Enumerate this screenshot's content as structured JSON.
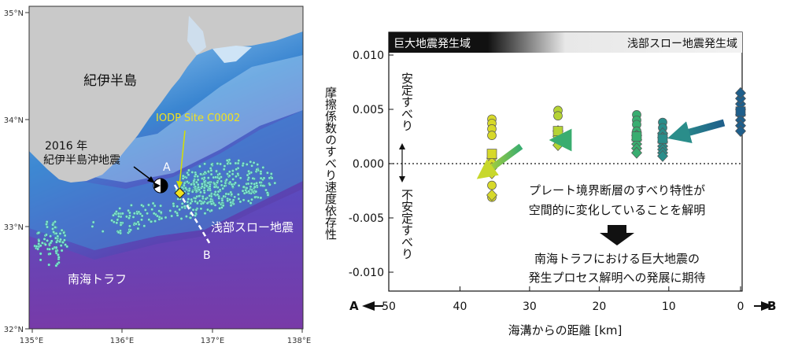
{
  "map": {
    "lat_labels": [
      "35°N",
      "34°N",
      "33°N",
      "32°N"
    ],
    "lon_labels": [
      "135°E",
      "136°E",
      "137°E",
      "138°E"
    ],
    "kii_peninsula": "紀伊半島",
    "nankai_trough": "南海トラフ",
    "shallow_slow_eq": "浅部スロー地震",
    "site_label": "IODP Site C0002",
    "eq_2016_line1": "2016 年",
    "eq_2016_line2": "紀伊半島沖地震",
    "point_a": "A",
    "point_b": "B",
    "colors": {
      "land": "#c8c8c8",
      "shelf": "#dcebf7",
      "slope": "#3d8fd6",
      "deep": "#4a3aa8",
      "dots": "#7fe3d4",
      "site": "#f2e21e"
    }
  },
  "chart_data": {
    "type": "scatter",
    "xlabel": "海溝からの距離 [km]",
    "ylabel": "摩擦係数のすべり速度依存性",
    "xlim": [
      50,
      0
    ],
    "ylim": [
      -0.0115,
      0.0115
    ],
    "x_ticks": [
      "50",
      "40",
      "30",
      "20",
      "10",
      "0"
    ],
    "y_ticks": [
      "0.010",
      "0.005",
      "0.000",
      "-0.005",
      "-0.010"
    ],
    "header_left": "巨大地震発生域",
    "header_right": "浅部スロー地震発生域",
    "stable_label": "安定すべり",
    "unstable_label": "不安定すべり",
    "arrow_a": "A",
    "arrow_b": "B",
    "annotation_line1": "プレート境界断層のすべり特性が",
    "annotation_line2": "空間的に変化していることを解明",
    "annotation_line3": "南海トラフにおける巨大地震の",
    "annotation_line4": "発生プロセス解明への発展に期待",
    "groups": [
      {
        "x": 0,
        "color": "#1f5f8b",
        "circles": [],
        "diamonds": [
          0.0045,
          0.004,
          0.0035,
          0.003,
          0.005,
          0.0055,
          0.006,
          0.0065
        ],
        "squares": [
          0.0048
        ]
      },
      {
        "x": 12.5,
        "color": "#2a8d8a",
        "circles": [
          0.0038,
          0.0033
        ],
        "diamonds": [
          0.0028,
          0.0024,
          0.002,
          0.0016,
          0.0013,
          0.001,
          0.0007
        ],
        "squares": [
          0.0023
        ]
      },
      {
        "x": 17,
        "color": "#39ad70",
        "circles": [
          0.0045,
          0.004,
          0.0036,
          0.003
        ],
        "diamonds": [
          0.0026,
          0.0022,
          0.0018,
          0.0014,
          0.001
        ],
        "squares": [
          0.0025
        ]
      },
      {
        "x": 29,
        "color": "#b5d334",
        "circles": [
          0.0049,
          0.0044
        ],
        "diamonds": [
          0.003,
          0.0025,
          0.0021,
          0.0017
        ],
        "squares": [
          0.003
        ]
      },
      {
        "x": 39.5,
        "color": "#d7d92a",
        "circles": [
          0.0041,
          0.0037,
          0.0032,
          0.0026,
          -0.002,
          -0.0031
        ],
        "diamonds": [
          0.0005,
          0.0001,
          -0.0004,
          -0.0009,
          -0.0029
        ],
        "squares": [
          0.0009
        ]
      }
    ]
  }
}
